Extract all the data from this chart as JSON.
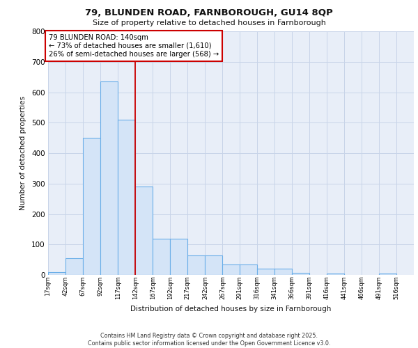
{
  "title_line1": "79, BLUNDEN ROAD, FARNBOROUGH, GU14 8QP",
  "title_line2": "Size of property relative to detached houses in Farnborough",
  "xlabel": "Distribution of detached houses by size in Farnborough",
  "ylabel": "Number of detached properties",
  "bin_labels": [
    "17sqm",
    "42sqm",
    "67sqm",
    "92sqm",
    "117sqm",
    "142sqm",
    "167sqm",
    "192sqm",
    "217sqm",
    "242sqm",
    "267sqm",
    "291sqm",
    "316sqm",
    "341sqm",
    "366sqm",
    "391sqm",
    "416sqm",
    "441sqm",
    "466sqm",
    "491sqm",
    "516sqm"
  ],
  "bin_edges": [
    17,
    42,
    67,
    92,
    117,
    142,
    167,
    192,
    217,
    242,
    267,
    291,
    316,
    341,
    366,
    391,
    416,
    441,
    466,
    491,
    516,
    541
  ],
  "bar_heights": [
    10,
    55,
    450,
    635,
    510,
    290,
    120,
    120,
    65,
    65,
    35,
    35,
    20,
    20,
    8,
    0,
    5,
    0,
    0,
    5,
    0
  ],
  "bar_color": "#d4e4f7",
  "bar_edge_color": "#6aaee8",
  "property_line_x": 142,
  "property_line_color": "#cc0000",
  "annotation_text": "79 BLUNDEN ROAD: 140sqm\n← 73% of detached houses are smaller (1,610)\n26% of semi-detached houses are larger (568) →",
  "annotation_box_color": "#ffffff",
  "annotation_box_edge": "#cc0000",
  "ylim": [
    0,
    800
  ],
  "yticks": [
    0,
    100,
    200,
    300,
    400,
    500,
    600,
    700,
    800
  ],
  "grid_color": "#c8d4e8",
  "bg_color": "#e8eef8",
  "footer_line1": "Contains HM Land Registry data © Crown copyright and database right 2025.",
  "footer_line2": "Contains public sector information licensed under the Open Government Licence v3.0."
}
